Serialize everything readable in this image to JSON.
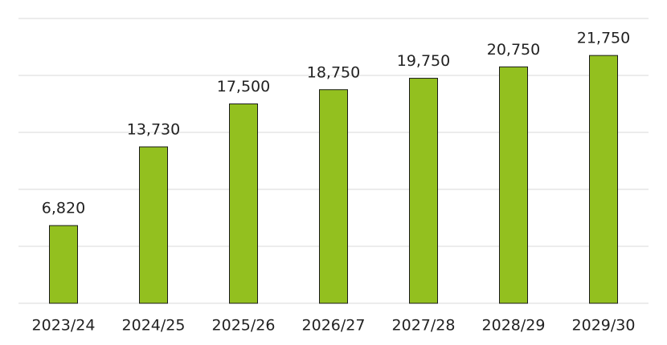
{
  "chart_data": {
    "type": "bar",
    "categories": [
      "2023/24",
      "2024/25",
      "2025/26",
      "2026/27",
      "2027/28",
      "2028/29",
      "2029/30"
    ],
    "values": [
      6820,
      13730,
      17500,
      18750,
      19750,
      20750,
      21750
    ],
    "value_labels": [
      "6,820",
      "13,730",
      "17,500",
      "18,750",
      "19,750",
      "20,750",
      "21,750"
    ],
    "color": "#93c01f",
    "ylim": [
      0,
      25000
    ],
    "yticks": [
      0,
      5000,
      10000,
      15000,
      20000,
      25000
    ],
    "grid": true
  }
}
